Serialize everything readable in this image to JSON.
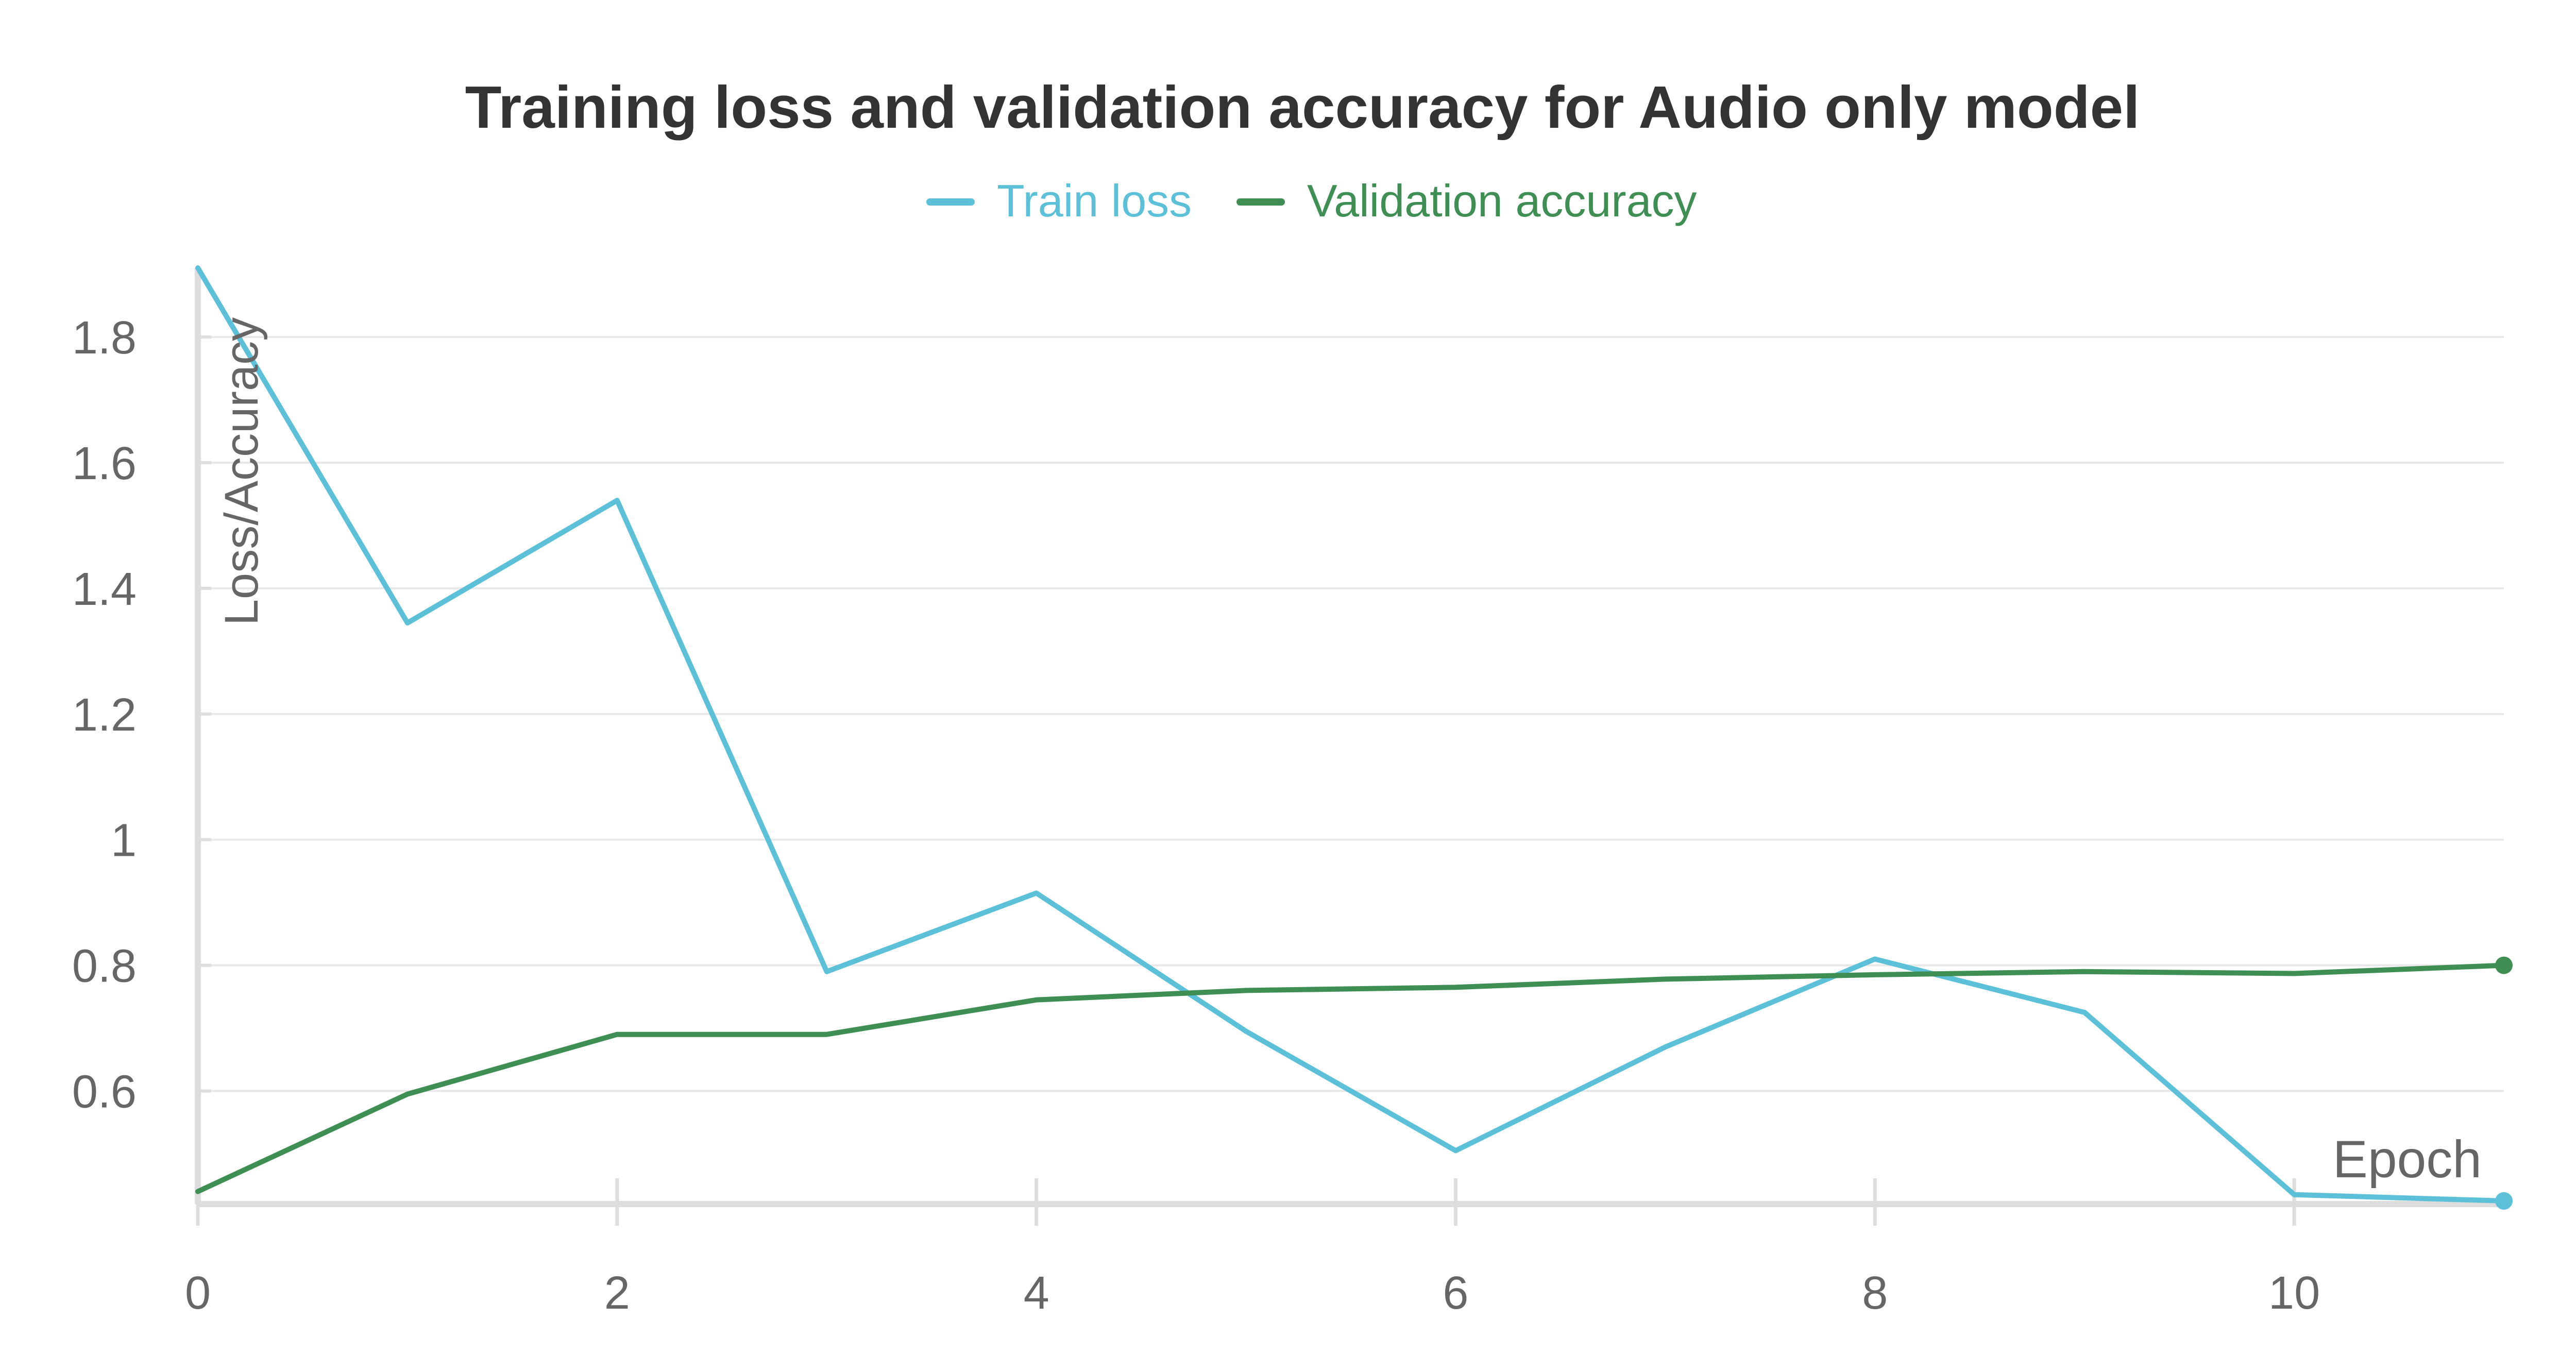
{
  "chart_data": {
    "type": "line",
    "title": "Training loss and validation accuracy for Audio only model",
    "xlabel": "Epoch",
    "ylabel": "Loss/Accuracy",
    "xlim": [
      0,
      11
    ],
    "ylim": [
      0.42,
      1.91
    ],
    "xticks": [
      0,
      2,
      4,
      6,
      8,
      10
    ],
    "xtick_labels": [
      "0",
      "2",
      "4",
      "6",
      "8",
      "10"
    ],
    "yticks": [
      0.6,
      0.8,
      1.0,
      1.2,
      1.4,
      1.6,
      1.8
    ],
    "ytick_labels": [
      "0.6",
      "0.8",
      "1",
      "1.2",
      "1.4",
      "1.6",
      "1.8"
    ],
    "grid": true,
    "legend_position": "top-center",
    "x": [
      0,
      1,
      2,
      3,
      4,
      5,
      6,
      7,
      8,
      9,
      10,
      11
    ],
    "series": [
      {
        "name": "Train loss",
        "color": "#5bc0d8",
        "values": [
          1.91,
          1.345,
          1.54,
          0.79,
          0.915,
          0.695,
          0.505,
          0.67,
          0.81,
          0.725,
          0.435,
          0.425
        ]
      },
      {
        "name": "Validation accuracy",
        "color": "#3f8f55",
        "values": [
          0.44,
          0.595,
          0.69,
          0.69,
          0.745,
          0.76,
          0.765,
          0.778,
          0.785,
          0.79,
          0.787,
          0.8
        ]
      }
    ]
  }
}
